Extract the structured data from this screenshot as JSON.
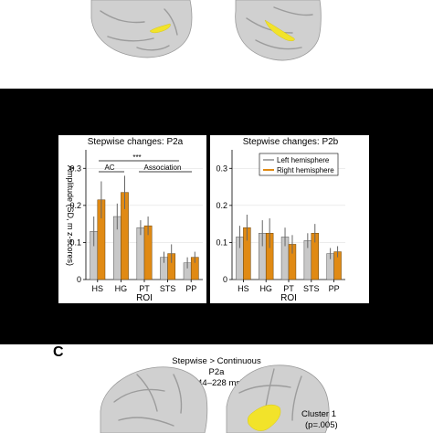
{
  "figure": {
    "panel_c_letter": "C",
    "panel_c_title_1": "Stepwise > Continuous",
    "panel_c_title_2": "P2a",
    "panel_c_title_3": "(144–228 ms)",
    "cluster_label_1": "Cluster 1",
    "cluster_label_2": "(p=.005)",
    "colors": {
      "left_hemisphere": "#c8c8c8",
      "right_hemisphere": "#e08a14",
      "activation": "#f2e32a",
      "background_band": "#000000"
    }
  },
  "chart_data": [
    {
      "type": "bar",
      "title": "Stepwise changes: P2a",
      "xlabel": "ROI",
      "ylabel": "Amplitude (SD, m z-scores)",
      "ylim": [
        0,
        0.35
      ],
      "yticks": [
        "0",
        "0.1",
        "0.2",
        "0.3"
      ],
      "categories": [
        "HS",
        "HG",
        "PT",
        "STS",
        "PP"
      ],
      "series": [
        {
          "name": "Left hemisphere",
          "values": [
            0.13,
            0.17,
            0.14,
            0.06,
            0.045
          ],
          "errors": [
            0.04,
            0.035,
            0.02,
            0.015,
            0.015
          ]
        },
        {
          "name": "Right hemisphere",
          "values": [
            0.215,
            0.235,
            0.145,
            0.07,
            0.06
          ],
          "errors": [
            0.05,
            0.045,
            0.025,
            0.025,
            0.015
          ]
        }
      ],
      "annotations": {
        "significance": "***",
        "group_1": "AC",
        "group_2": "Association"
      },
      "grid": true,
      "legend": "none"
    },
    {
      "type": "bar",
      "title": "Stepwise changes: P2b",
      "xlabel": "ROI",
      "ylabel": "",
      "ylim": [
        0,
        0.35
      ],
      "yticks": [
        "0",
        "0.1",
        "0.2",
        "0.3"
      ],
      "categories": [
        "HS",
        "HG",
        "PT",
        "STS",
        "PP"
      ],
      "series": [
        {
          "name": "Left hemisphere",
          "values": [
            0.115,
            0.125,
            0.115,
            0.105,
            0.07
          ],
          "errors": [
            0.03,
            0.035,
            0.025,
            0.02,
            0.015
          ]
        },
        {
          "name": "Right hemisphere",
          "values": [
            0.14,
            0.125,
            0.095,
            0.125,
            0.075
          ],
          "errors": [
            0.035,
            0.04,
            0.025,
            0.025,
            0.015
          ]
        }
      ],
      "grid": true,
      "legend": "top-right"
    }
  ]
}
